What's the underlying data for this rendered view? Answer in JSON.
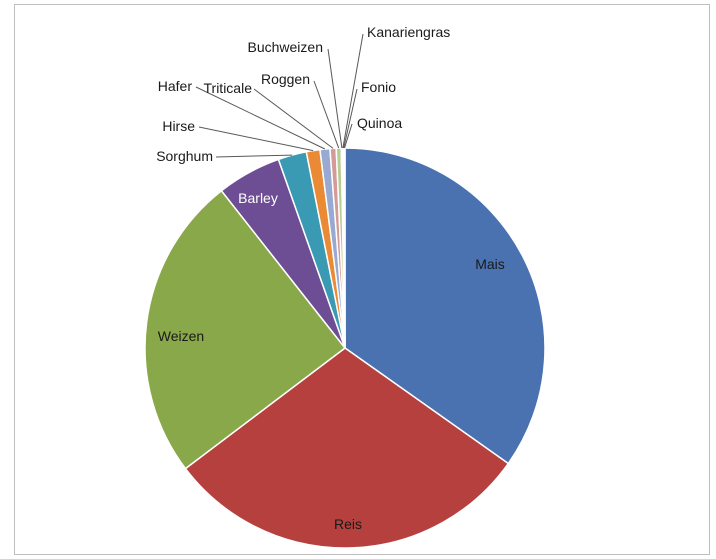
{
  "chart_data": {
    "type": "pie",
    "title": "",
    "start_angle_deg": 0,
    "direction": "clockwise",
    "slices": [
      {
        "name": "Mais",
        "value": 34.8,
        "color": "#4a72b0",
        "label_pos": "inside",
        "label_color": "#1a1a1a"
      },
      {
        "name": "Reis",
        "value": 29.9,
        "color": "#b6403d",
        "label_pos": "inside",
        "label_color": "#1a1a1a"
      },
      {
        "name": "Weizen",
        "value": 24.7,
        "color": "#88a84a",
        "label_pos": "inside",
        "label_color": "#1a1a1a"
      },
      {
        "name": "Barley",
        "value": 5.2,
        "color": "#6d4d93",
        "label_pos": "inside",
        "label_color": "#ffffff"
      },
      {
        "name": "Sorghum",
        "value": 2.3,
        "color": "#3a9ab3",
        "label_pos": "outside",
        "label_color": "#1a1a1a"
      },
      {
        "name": "Hirse",
        "value": 1.1,
        "color": "#ea8a35",
        "label_pos": "outside",
        "label_color": "#1a1a1a"
      },
      {
        "name": "Hafer",
        "value": 0.8,
        "color": "#98a9d2",
        "label_pos": "outside",
        "label_color": "#1a1a1a"
      },
      {
        "name": "Triticale",
        "value": 0.5,
        "color": "#d49a98",
        "label_pos": "outside",
        "label_color": "#1a1a1a"
      },
      {
        "name": "Roggen",
        "value": 0.4,
        "color": "#b8cc92",
        "label_pos": "outside",
        "label_color": "#1a1a1a"
      },
      {
        "name": "Buchweizen",
        "value": 0.1,
        "color": "#a497bd",
        "label_pos": "outside",
        "label_color": "#1a1a1a"
      },
      {
        "name": "Kanariengras",
        "value": 0.07,
        "color": "#7fc3d6",
        "label_pos": "outside",
        "label_color": "#1a1a1a"
      },
      {
        "name": "Fonio",
        "value": 0.05,
        "color": "#f2b07d",
        "label_pos": "outside",
        "label_color": "#1a1a1a"
      },
      {
        "name": "Quinoa",
        "value": 0.08,
        "color": "#c2cfe6",
        "label_pos": "outside",
        "label_color": "#1a1a1a"
      }
    ],
    "legend": "none"
  }
}
